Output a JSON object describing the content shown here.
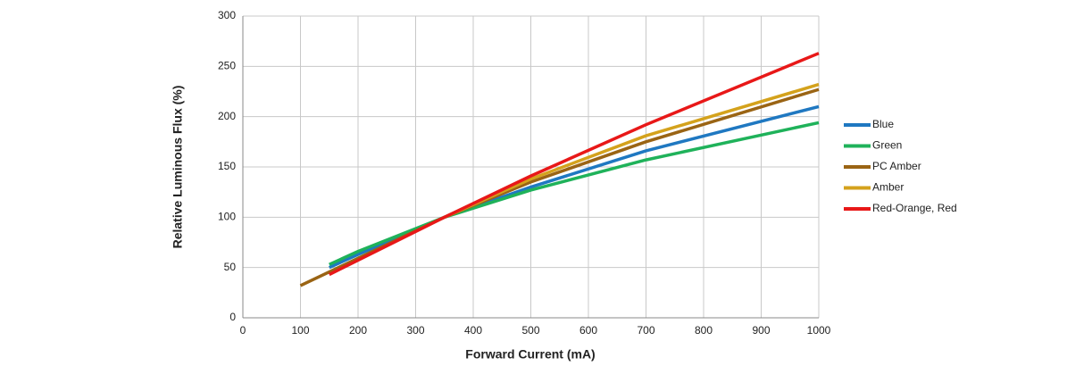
{
  "chart_data": {
    "type": "line",
    "xlabel": "Forward Current (mA)",
    "ylabel": "Relative Luminous Flux (%)",
    "xlim": [
      0,
      1000
    ],
    "xticks": [
      0,
      100,
      200,
      300,
      400,
      500,
      600,
      700,
      800,
      900,
      1000
    ],
    "ylim": [
      0,
      300
    ],
    "yticks": [
      0,
      50,
      100,
      150,
      200,
      250,
      300
    ],
    "grid": true,
    "legend": "right",
    "series": [
      {
        "name": "Blue",
        "color": "#1f78c1",
        "x": [
          150,
          200,
          350,
          500,
          700,
          1000
        ],
        "values": [
          50,
          63,
          100,
          130,
          166,
          210
        ]
      },
      {
        "name": "Green",
        "color": "#1fb25a",
        "x": [
          150,
          200,
          350,
          500,
          700,
          1000
        ],
        "values": [
          53,
          66,
          100,
          127,
          157,
          194
        ]
      },
      {
        "name": "PC Amber",
        "color": "#9a6414",
        "x": [
          100,
          350,
          500,
          700,
          1000
        ],
        "values": [
          32,
          100,
          135,
          175,
          227
        ]
      },
      {
        "name": "Amber",
        "color": "#d4a21c",
        "x": [
          350,
          500,
          700,
          1000
        ],
        "values": [
          100,
          138,
          181,
          232
        ]
      },
      {
        "name": "Red-Orange, Red",
        "color": "#e81818",
        "x": [
          150,
          350,
          500,
          700,
          1000
        ],
        "values": [
          43,
          100,
          141,
          192,
          263
        ]
      }
    ]
  }
}
